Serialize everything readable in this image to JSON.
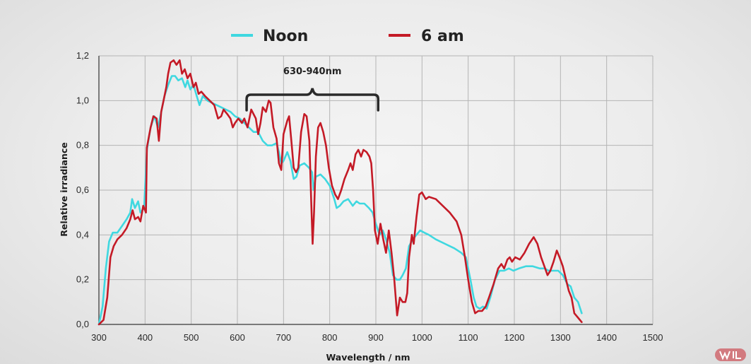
{
  "chart_data": {
    "type": "line",
    "xlabel": "Wavelength / nm",
    "ylabel": "Relative irradiance",
    "xlim": [
      300,
      1500
    ],
    "ylim": [
      0,
      1.2
    ],
    "xticks": [
      300,
      400,
      500,
      600,
      700,
      800,
      900,
      1000,
      1100,
      1200,
      1300,
      1400,
      1500
    ],
    "yticks": [
      "0,0",
      "0,2",
      "0,4",
      "0,6",
      "0,8",
      "1,0",
      "1,2"
    ],
    "grid": true,
    "legend_position": "top-center",
    "annotation": {
      "text": "630-940nm",
      "x_start": 620,
      "x_end": 905
    },
    "series": [
      {
        "name": "Noon",
        "color": "#3fd8e0",
        "points": [
          [
            300,
            0
          ],
          [
            308,
            0.08
          ],
          [
            315,
            0.25
          ],
          [
            322,
            0.37
          ],
          [
            330,
            0.41
          ],
          [
            340,
            0.41
          ],
          [
            350,
            0.44
          ],
          [
            360,
            0.47
          ],
          [
            368,
            0.5
          ],
          [
            372,
            0.56
          ],
          [
            378,
            0.52
          ],
          [
            385,
            0.55
          ],
          [
            390,
            0.5
          ],
          [
            398,
            0.52
          ],
          [
            404,
            0.78
          ],
          [
            412,
            0.88
          ],
          [
            420,
            0.93
          ],
          [
            428,
            0.88
          ],
          [
            435,
            0.95
          ],
          [
            442,
            1.02
          ],
          [
            450,
            1.07
          ],
          [
            458,
            1.11
          ],
          [
            465,
            1.11
          ],
          [
            472,
            1.09
          ],
          [
            480,
            1.1
          ],
          [
            487,
            1.06
          ],
          [
            492,
            1.09
          ],
          [
            498,
            1.05
          ],
          [
            505,
            1.07
          ],
          [
            512,
            1.02
          ],
          [
            518,
            0.98
          ],
          [
            525,
            1.02
          ],
          [
            535,
            1.0
          ],
          [
            545,
            0.99
          ],
          [
            555,
            0.98
          ],
          [
            565,
            0.97
          ],
          [
            575,
            0.96
          ],
          [
            585,
            0.95
          ],
          [
            595,
            0.93
          ],
          [
            605,
            0.92
          ],
          [
            615,
            0.9
          ],
          [
            625,
            0.88
          ],
          [
            635,
            0.86
          ],
          [
            645,
            0.86
          ],
          [
            655,
            0.82
          ],
          [
            665,
            0.8
          ],
          [
            675,
            0.8
          ],
          [
            685,
            0.81
          ],
          [
            690,
            0.77
          ],
          [
            695,
            0.72
          ],
          [
            700,
            0.73
          ],
          [
            708,
            0.77
          ],
          [
            715,
            0.73
          ],
          [
            722,
            0.65
          ],
          [
            728,
            0.66
          ],
          [
            735,
            0.71
          ],
          [
            745,
            0.72
          ],
          [
            755,
            0.7
          ],
          [
            762,
            0.68
          ],
          [
            765,
            0.6
          ],
          [
            770,
            0.66
          ],
          [
            780,
            0.67
          ],
          [
            790,
            0.65
          ],
          [
            800,
            0.62
          ],
          [
            810,
            0.56
          ],
          [
            815,
            0.52
          ],
          [
            822,
            0.53
          ],
          [
            830,
            0.55
          ],
          [
            840,
            0.56
          ],
          [
            850,
            0.53
          ],
          [
            858,
            0.55
          ],
          [
            865,
            0.54
          ],
          [
            875,
            0.54
          ],
          [
            885,
            0.52
          ],
          [
            893,
            0.5
          ],
          [
            900,
            0.45
          ],
          [
            908,
            0.4
          ],
          [
            915,
            0.42
          ],
          [
            922,
            0.38
          ],
          [
            930,
            0.32
          ],
          [
            937,
            0.22
          ],
          [
            945,
            0.2
          ],
          [
            952,
            0.2
          ],
          [
            958,
            0.22
          ],
          [
            965,
            0.25
          ],
          [
            972,
            0.35
          ],
          [
            980,
            0.38
          ],
          [
            988,
            0.4
          ],
          [
            996,
            0.42
          ],
          [
            1005,
            0.41
          ],
          [
            1015,
            0.4
          ],
          [
            1030,
            0.38
          ],
          [
            1050,
            0.36
          ],
          [
            1070,
            0.34
          ],
          [
            1085,
            0.32
          ],
          [
            1095,
            0.3
          ],
          [
            1105,
            0.2
          ],
          [
            1112,
            0.12
          ],
          [
            1118,
            0.08
          ],
          [
            1125,
            0.07
          ],
          [
            1132,
            0.08
          ],
          [
            1140,
            0.07
          ],
          [
            1148,
            0.12
          ],
          [
            1158,
            0.2
          ],
          [
            1168,
            0.24
          ],
          [
            1178,
            0.24
          ],
          [
            1188,
            0.25
          ],
          [
            1198,
            0.24
          ],
          [
            1210,
            0.25
          ],
          [
            1225,
            0.26
          ],
          [
            1240,
            0.26
          ],
          [
            1255,
            0.25
          ],
          [
            1265,
            0.25
          ],
          [
            1275,
            0.24
          ],
          [
            1285,
            0.24
          ],
          [
            1295,
            0.24
          ],
          [
            1305,
            0.22
          ],
          [
            1315,
            0.18
          ],
          [
            1322,
            0.17
          ],
          [
            1330,
            0.12
          ],
          [
            1338,
            0.1
          ],
          [
            1346,
            0.05
          ]
        ]
      },
      {
        "name": "6 am",
        "color": "#c41a26",
        "points": [
          [
            300,
            0
          ],
          [
            310,
            0.02
          ],
          [
            318,
            0.12
          ],
          [
            325,
            0.3
          ],
          [
            332,
            0.35
          ],
          [
            340,
            0.38
          ],
          [
            350,
            0.4
          ],
          [
            360,
            0.43
          ],
          [
            368,
            0.47
          ],
          [
            373,
            0.51
          ],
          [
            378,
            0.47
          ],
          [
            385,
            0.48
          ],
          [
            390,
            0.46
          ],
          [
            396,
            0.53
          ],
          [
            402,
            0.5
          ],
          [
            404,
            0.79
          ],
          [
            412,
            0.88
          ],
          [
            418,
            0.93
          ],
          [
            425,
            0.92
          ],
          [
            430,
            0.82
          ],
          [
            435,
            0.95
          ],
          [
            440,
            1.0
          ],
          [
            446,
            1.06
          ],
          [
            450,
            1.12
          ],
          [
            455,
            1.17
          ],
          [
            462,
            1.18
          ],
          [
            468,
            1.16
          ],
          [
            475,
            1.18
          ],
          [
            480,
            1.12
          ],
          [
            486,
            1.14
          ],
          [
            492,
            1.1
          ],
          [
            498,
            1.12
          ],
          [
            505,
            1.06
          ],
          [
            510,
            1.08
          ],
          [
            516,
            1.03
          ],
          [
            522,
            1.04
          ],
          [
            530,
            1.02
          ],
          [
            540,
            1.0
          ],
          [
            550,
            0.98
          ],
          [
            558,
            0.92
          ],
          [
            565,
            0.93
          ],
          [
            570,
            0.96
          ],
          [
            578,
            0.94
          ],
          [
            585,
            0.92
          ],
          [
            590,
            0.88
          ],
          [
            595,
            0.9
          ],
          [
            602,
            0.92
          ],
          [
            610,
            0.9
          ],
          [
            615,
            0.92
          ],
          [
            622,
            0.88
          ],
          [
            630,
            0.96
          ],
          [
            640,
            0.92
          ],
          [
            645,
            0.85
          ],
          [
            650,
            0.9
          ],
          [
            655,
            0.97
          ],
          [
            662,
            0.95
          ],
          [
            668,
            1.0
          ],
          [
            672,
            0.99
          ],
          [
            678,
            0.88
          ],
          [
            685,
            0.83
          ],
          [
            690,
            0.72
          ],
          [
            695,
            0.69
          ],
          [
            700,
            0.85
          ],
          [
            708,
            0.91
          ],
          [
            712,
            0.93
          ],
          [
            717,
            0.82
          ],
          [
            722,
            0.7
          ],
          [
            727,
            0.68
          ],
          [
            732,
            0.7
          ],
          [
            738,
            0.86
          ],
          [
            745,
            0.94
          ],
          [
            750,
            0.93
          ],
          [
            756,
            0.82
          ],
          [
            760,
            0.55
          ],
          [
            763,
            0.36
          ],
          [
            766,
            0.5
          ],
          [
            770,
            0.75
          ],
          [
            775,
            0.88
          ],
          [
            780,
            0.9
          ],
          [
            786,
            0.86
          ],
          [
            792,
            0.8
          ],
          [
            798,
            0.7
          ],
          [
            805,
            0.62
          ],
          [
            812,
            0.58
          ],
          [
            818,
            0.56
          ],
          [
            825,
            0.6
          ],
          [
            832,
            0.65
          ],
          [
            840,
            0.69
          ],
          [
            845,
            0.72
          ],
          [
            850,
            0.69
          ],
          [
            856,
            0.76
          ],
          [
            862,
            0.78
          ],
          [
            868,
            0.75
          ],
          [
            873,
            0.78
          ],
          [
            880,
            0.77
          ],
          [
            886,
            0.75
          ],
          [
            890,
            0.72
          ],
          [
            894,
            0.6
          ],
          [
            898,
            0.42
          ],
          [
            904,
            0.36
          ],
          [
            910,
            0.45
          ],
          [
            916,
            0.38
          ],
          [
            922,
            0.32
          ],
          [
            928,
            0.42
          ],
          [
            934,
            0.32
          ],
          [
            940,
            0.2
          ],
          [
            946,
            0.04
          ],
          [
            952,
            0.12
          ],
          [
            958,
            0.1
          ],
          [
            964,
            0.1
          ],
          [
            968,
            0.14
          ],
          [
            972,
            0.3
          ],
          [
            978,
            0.4
          ],
          [
            982,
            0.36
          ],
          [
            988,
            0.48
          ],
          [
            994,
            0.58
          ],
          [
            1000,
            0.59
          ],
          [
            1008,
            0.56
          ],
          [
            1015,
            0.57
          ],
          [
            1030,
            0.56
          ],
          [
            1045,
            0.53
          ],
          [
            1060,
            0.5
          ],
          [
            1075,
            0.46
          ],
          [
            1085,
            0.4
          ],
          [
            1093,
            0.3
          ],
          [
            1100,
            0.2
          ],
          [
            1108,
            0.1
          ],
          [
            1115,
            0.05
          ],
          [
            1122,
            0.06
          ],
          [
            1130,
            0.06
          ],
          [
            1138,
            0.08
          ],
          [
            1145,
            0.12
          ],
          [
            1155,
            0.18
          ],
          [
            1165,
            0.25
          ],
          [
            1172,
            0.27
          ],
          [
            1178,
            0.25
          ],
          [
            1185,
            0.29
          ],
          [
            1190,
            0.3
          ],
          [
            1195,
            0.28
          ],
          [
            1202,
            0.3
          ],
          [
            1212,
            0.29
          ],
          [
            1222,
            0.32
          ],
          [
            1232,
            0.36
          ],
          [
            1242,
            0.39
          ],
          [
            1250,
            0.36
          ],
          [
            1258,
            0.3
          ],
          [
            1265,
            0.26
          ],
          [
            1272,
            0.22
          ],
          [
            1278,
            0.24
          ],
          [
            1285,
            0.28
          ],
          [
            1292,
            0.33
          ],
          [
            1298,
            0.3
          ],
          [
            1305,
            0.26
          ],
          [
            1312,
            0.2
          ],
          [
            1318,
            0.15
          ],
          [
            1324,
            0.12
          ],
          [
            1330,
            0.05
          ],
          [
            1338,
            0.03
          ],
          [
            1346,
            0.01
          ]
        ]
      }
    ]
  }
}
